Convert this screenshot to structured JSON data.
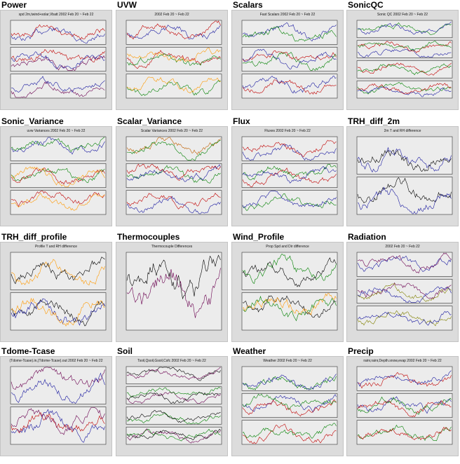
{
  "thumbnails": [
    {
      "title": "Power",
      "subtitle": "spd 2m,twind+solar,Vbatt 2002 Feb 20 ~ Feb 22",
      "panels": 3,
      "colors": [
        "#1a1aa0",
        "#c00000",
        "#6a0050"
      ]
    },
    {
      "title": "UVW",
      "subtitle": "2002 Feb 20 ~ Feb 22",
      "panels": 3,
      "colors": [
        "#1a1aa0",
        "#c00000",
        "#008000",
        "#ff9900"
      ]
    },
    {
      "title": "Scalars",
      "subtitle": "Fast Scalars 2002 Feb 20 ~ Feb 22",
      "panels": 3,
      "colors": [
        "#1a1aa0",
        "#008000",
        "#c00000"
      ]
    },
    {
      "title": "SonicQC",
      "subtitle": "Sonic QC 2002 Feb 20 ~ Feb 22",
      "panels": 4,
      "colors": [
        "#008000",
        "#1a1aa0",
        "#c00000"
      ]
    },
    {
      "title": "Sonic_Variance",
      "subtitle": "uvw Variances 2002 Feb 20 ~ Feb 22",
      "panels": 3,
      "colors": [
        "#1a1aa0",
        "#008000",
        "#c00000",
        "#ff9900"
      ]
    },
    {
      "title": "Scalar_Variance",
      "subtitle": "Scalar Variances 2002 Feb 20 ~ Feb 22",
      "panels": 3,
      "colors": [
        "#c06000",
        "#008000",
        "#1a1aa0",
        "#c00000"
      ]
    },
    {
      "title": "Flux",
      "subtitle": "Fluxes 2002 Feb 20 ~ Feb 22",
      "panels": 3,
      "colors": [
        "#1a1aa0",
        "#c00000",
        "#008000"
      ]
    },
    {
      "title": "TRH_diff_2m",
      "subtitle": "2m T and RH difference",
      "panels": 2,
      "colors": [
        "#1a1aa0",
        "#000000"
      ]
    },
    {
      "title": "TRH_diff_profile",
      "subtitle": "Profile T and RH difference",
      "panels": 2,
      "colors": [
        "#ff9900",
        "#000000",
        "#1a1aa0"
      ]
    },
    {
      "title": "Thermocouples",
      "subtitle": "Thermocouple Differences",
      "panels": 1,
      "colors": [
        "#6a0050",
        "#000000",
        "#c00000",
        "#008000"
      ]
    },
    {
      "title": "Wind_Profile",
      "subtitle": "Prop Spd and Dir difference",
      "panels": 2,
      "colors": [
        "#008000",
        "#000000",
        "#ff9900"
      ]
    },
    {
      "title": "Radiation",
      "subtitle": "2002 Feb 20 ~ Feb 22",
      "panels": 3,
      "colors": [
        "#1a1aa0",
        "#6a0050",
        "#808000"
      ]
    },
    {
      "title": "Tdome-Tcase",
      "subtitle": "(Tdome-Tcase).in,(Tdome-Tcase).out 2002 Feb 20 ~ Feb 22",
      "panels": 2,
      "colors": [
        "#6a0050",
        "#1a1aa0",
        "#c00000"
      ]
    },
    {
      "title": "Soil",
      "subtitle": "Tsoil,Qsoil,Gsoil,Csfc 2002 Feb 20 ~ Feb 22",
      "panels": 4,
      "colors": [
        "#000000",
        "#6a0050",
        "#008000"
      ]
    },
    {
      "title": "Weather",
      "subtitle": "Weather 2002 Feb 20 ~ Feb 22",
      "panels": 3,
      "colors": [
        "#008000",
        "#1a1aa0",
        "#c00000"
      ]
    },
    {
      "title": "Precip",
      "subtitle": "rainr,rainr,Depth.snow,evap 2002 Feb 20 ~ Feb 22",
      "panels": 3,
      "colors": [
        "#c00000",
        "#1a1aa0",
        "#008000"
      ]
    }
  ]
}
